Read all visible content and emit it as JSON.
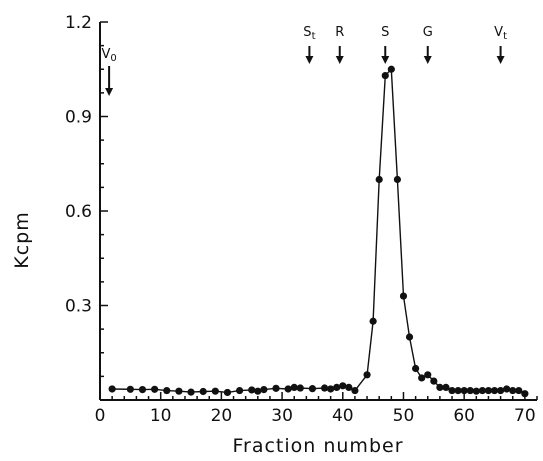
{
  "chart_data": {
    "type": "line",
    "xlabel": "Fraction number",
    "ylabel": "Kcpm",
    "xlim": [
      0,
      72
    ],
    "ylim": [
      0,
      1.2
    ],
    "xticks": [
      0,
      10,
      20,
      30,
      40,
      50,
      60,
      70
    ],
    "yticks": [
      0.3,
      0.6,
      0.9,
      1.2
    ],
    "ytick_labels": [
      "0.3",
      "0.6",
      "0.9",
      "1.2"
    ],
    "grid": false,
    "series": [
      {
        "x": [
          2,
          5,
          7,
          9,
          11,
          13,
          15,
          17,
          19,
          21,
          23,
          25,
          26,
          27,
          29,
          31,
          32,
          33,
          35,
          37,
          38,
          39,
          40,
          41,
          42,
          44,
          45,
          46,
          47,
          48,
          49,
          50,
          51,
          52,
          53,
          54,
          55,
          56,
          57,
          58,
          59,
          60,
          61,
          62,
          63,
          64,
          65,
          66,
          67,
          68,
          69,
          70
        ],
        "y": [
          0.035,
          0.034,
          0.033,
          0.034,
          0.03,
          0.028,
          0.025,
          0.027,
          0.028,
          0.024,
          0.03,
          0.032,
          0.028,
          0.033,
          0.037,
          0.035,
          0.04,
          0.038,
          0.036,
          0.038,
          0.035,
          0.04,
          0.045,
          0.04,
          0.03,
          0.08,
          0.25,
          0.7,
          1.03,
          1.05,
          0.7,
          0.33,
          0.2,
          0.1,
          0.07,
          0.08,
          0.06,
          0.04,
          0.04,
          0.03,
          0.03,
          0.03,
          0.03,
          0.028,
          0.03,
          0.03,
          0.03,
          0.03,
          0.035,
          0.03,
          0.03,
          0.02
        ]
      }
    ],
    "markers": [
      {
        "label": "V0",
        "x": 1.5
      },
      {
        "label": "St",
        "x": 34.5
      },
      {
        "label": "R",
        "x": 39.5
      },
      {
        "label": "S",
        "x": 47
      },
      {
        "label": "G",
        "x": 54
      },
      {
        "label": "Vt",
        "x": 66
      }
    ]
  }
}
